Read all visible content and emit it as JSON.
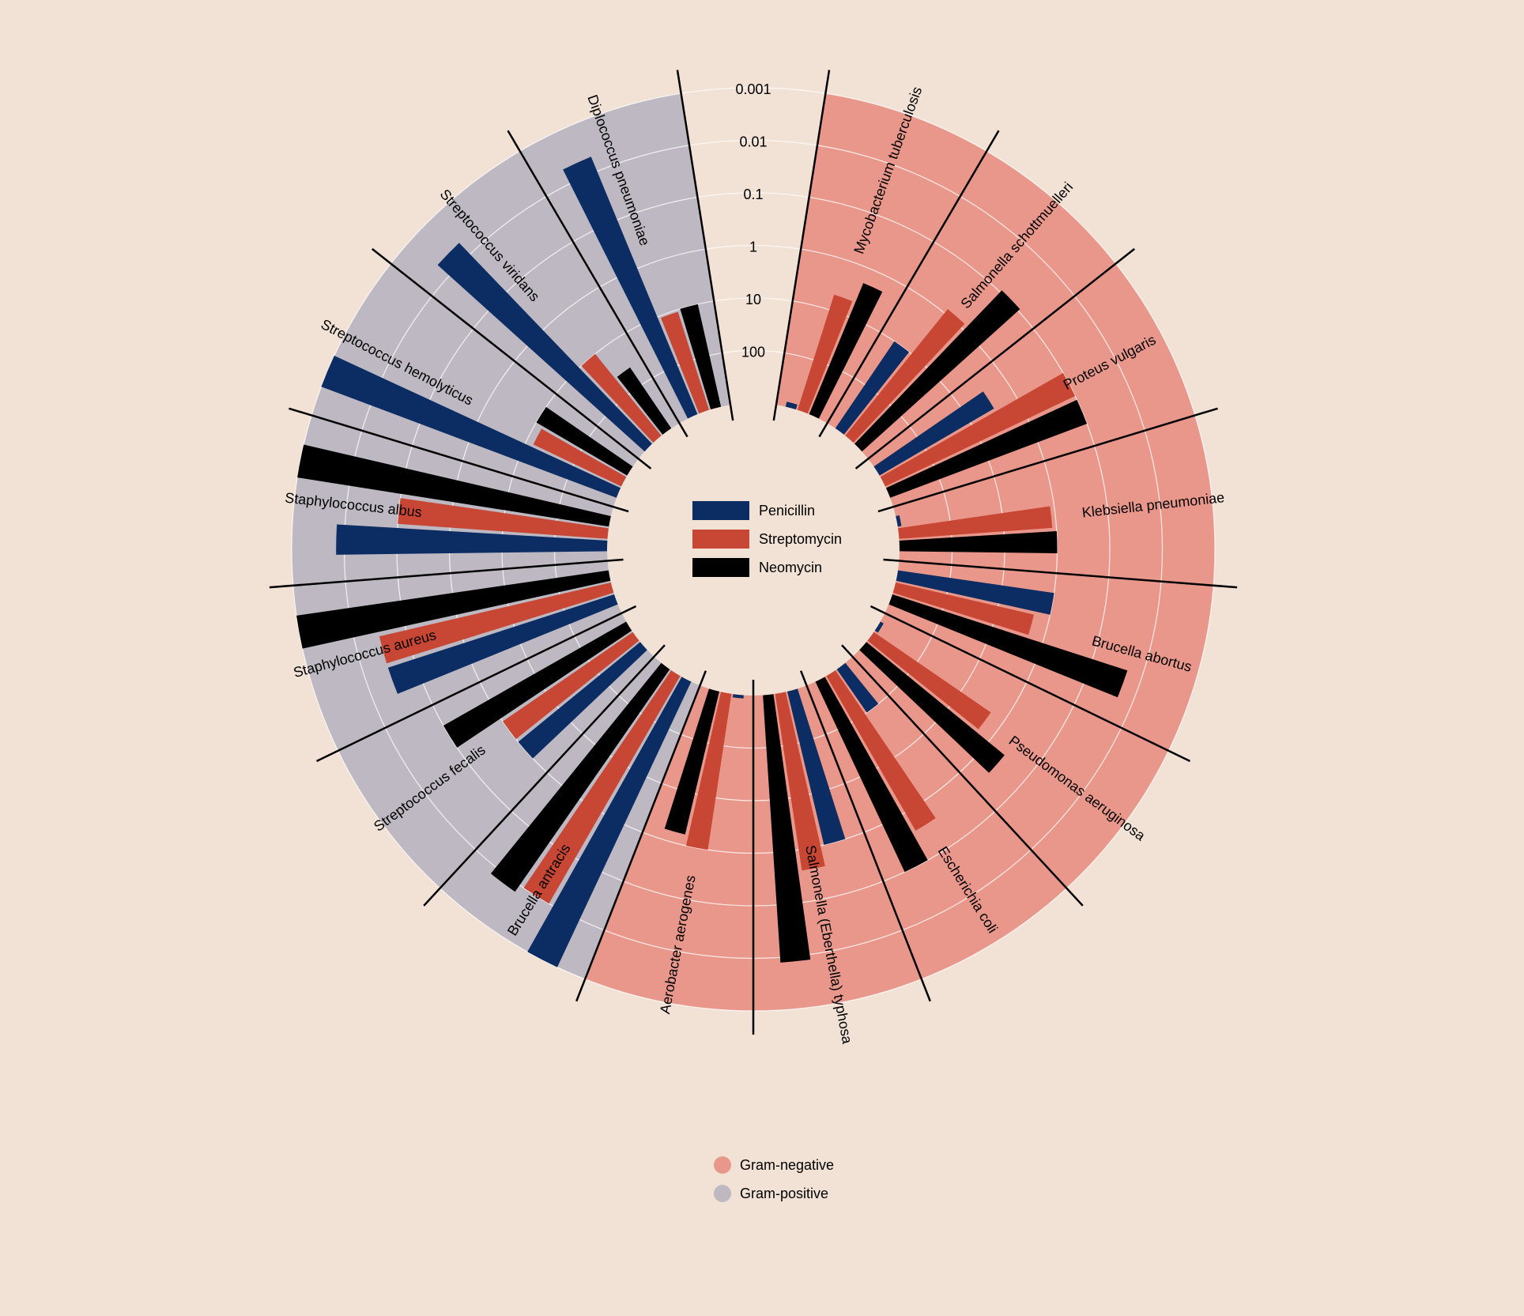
{
  "chart_data": {
    "type": "radial-bar",
    "title": "",
    "scale": "log",
    "scale_direction": "smaller values plotted further from center",
    "axis_ticks": [
      "0.001",
      "0.01",
      "0.1",
      "1",
      "10",
      "100"
    ],
    "tick_values": [
      0.001,
      0.01,
      0.1,
      1,
      10,
      100
    ],
    "domain": [
      0.001,
      1000
    ],
    "series": [
      {
        "name": "Penicillin",
        "color": "#0b2d63"
      },
      {
        "name": "Streptomycin",
        "color": "#c84634"
      },
      {
        "name": "Neomycin",
        "color": "#000000"
      }
    ],
    "groups": [
      {
        "name": "Gram-negative",
        "color": "#e8978a"
      },
      {
        "name": "Gram-positive",
        "color": "#bdb8c1"
      }
    ],
    "bacteria": [
      {
        "name": "Mycobacterium tuberculosis",
        "gram": "negative",
        "values": [
          800,
          5,
          2
        ]
      },
      {
        "name": "Salmonella schottmuelleri",
        "gram": "negative",
        "values": [
          10,
          0.8,
          0.09
        ]
      },
      {
        "name": "Proteus vulgaris",
        "gram": "negative",
        "values": [
          3,
          0.1,
          0.1
        ]
      },
      {
        "name": "Klebsiella pneumoniae",
        "gram": "negative",
        "values": [
          850,
          1.2,
          1
        ]
      },
      {
        "name": "Brucella abortus",
        "gram": "negative",
        "values": [
          1,
          2,
          0.02
        ]
      },
      {
        "name": "Pseudomonas aeruginosa",
        "gram": "negative",
        "values": [
          850,
          2,
          0.4
        ]
      },
      {
        "name": "Escherichia coli",
        "gram": "negative",
        "values": [
          100,
          0.4,
          0.1
        ]
      },
      {
        "name": "Salmonella (Eberthella) typhosa",
        "gram": "negative",
        "values": [
          1,
          0.4,
          0.008
        ]
      },
      {
        "name": "Aerobacter aerogenes",
        "gram": "negative",
        "values": [
          870,
          1,
          1.6
        ]
      },
      {
        "name": "Brucella antracis",
        "gram": "positive",
        "values": [
          0.001,
          0.01,
          0.007
        ]
      },
      {
        "name": "Streptococcus fecalis",
        "gram": "positive",
        "values": [
          1,
          1,
          0.1
        ]
      },
      {
        "name": "Staphylococcus aureus",
        "gram": "positive",
        "values": [
          0.03,
          0.03,
          0.001
        ]
      },
      {
        "name": "Staphylococcus albus",
        "gram": "positive",
        "values": [
          0.007,
          0.1,
          0.001
        ]
      },
      {
        "name": "Streptococcus hemolyticus",
        "gram": "positive",
        "values": [
          0.001,
          14,
          10
        ]
      },
      {
        "name": "Streptococcus viridans",
        "gram": "positive",
        "values": [
          0.005,
          10,
          40
        ]
      },
      {
        "name": "Diplococcus pneumoniae",
        "gram": "positive",
        "values": [
          0.005,
          11,
          10
        ]
      }
    ]
  }
}
